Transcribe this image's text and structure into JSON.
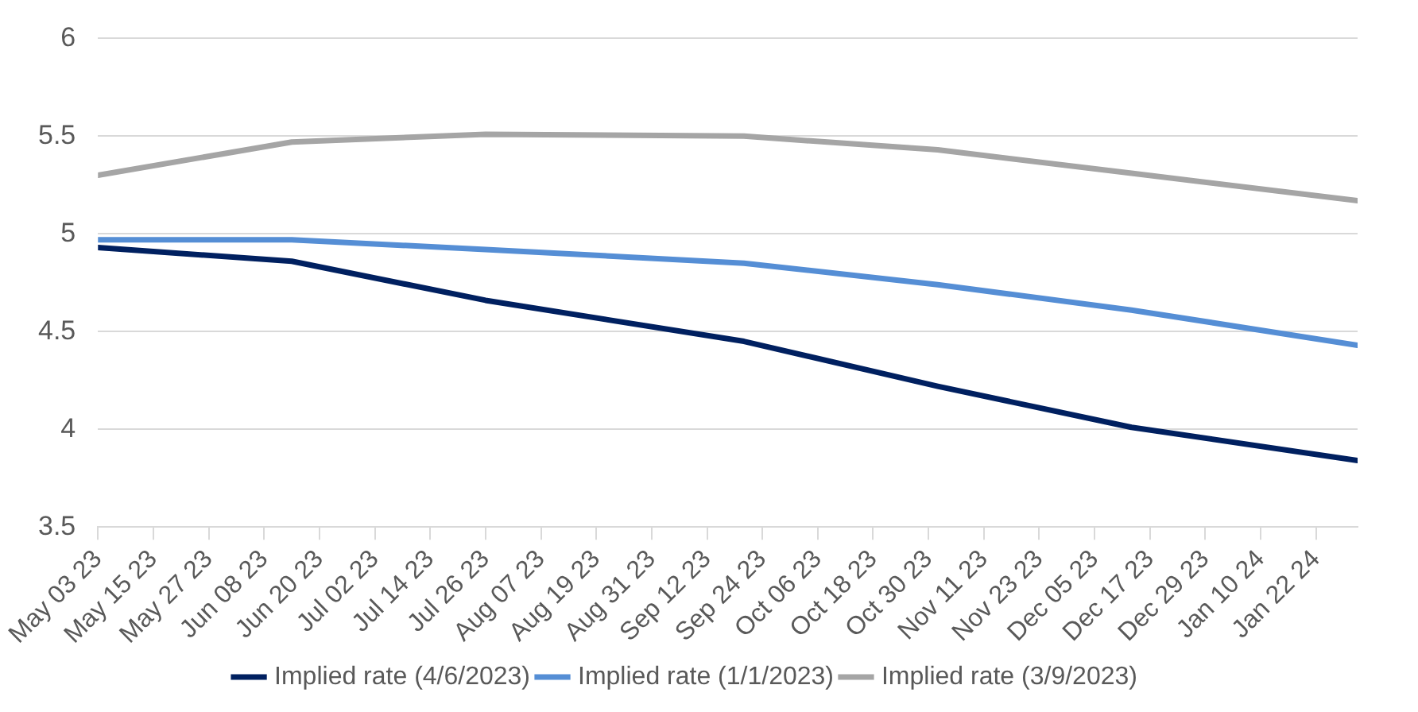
{
  "chart_data": {
    "type": "line",
    "x": [
      "2023-05-03",
      "2023-06-14",
      "2023-07-26",
      "2023-09-20",
      "2023-11-01",
      "2023-12-13",
      "2024-01-31"
    ],
    "series": [
      {
        "name": "Implied rate (4/6/2023)",
        "color": "#002060",
        "values": [
          4.93,
          4.86,
          4.66,
          4.45,
          4.22,
          4.01,
          3.84
        ]
      },
      {
        "name": "Implied rate (1/1/2023)",
        "color": "#558ed5",
        "values": [
          4.97,
          4.97,
          4.92,
          4.85,
          4.74,
          4.61,
          4.43
        ]
      },
      {
        "name": "Implied rate (3/9/2023)",
        "color": "#a5a5a5",
        "values": [
          5.3,
          5.47,
          5.51,
          5.5,
          5.43,
          5.31,
          5.17
        ]
      }
    ],
    "xlim": [
      "2023-05-03",
      "2024-01-31"
    ],
    "xticks": [
      {
        "value": "2023-05-03",
        "label": "May 03 23"
      },
      {
        "value": "2023-05-15",
        "label": "May 15 23"
      },
      {
        "value": "2023-05-27",
        "label": "May 27 23"
      },
      {
        "value": "2023-06-08",
        "label": "Jun 08 23"
      },
      {
        "value": "2023-06-20",
        "label": "Jun 20 23"
      },
      {
        "value": "2023-07-02",
        "label": "Jul 02 23"
      },
      {
        "value": "2023-07-14",
        "label": "Jul 14 23"
      },
      {
        "value": "2023-07-26",
        "label": "Jul 26 23"
      },
      {
        "value": "2023-08-07",
        "label": "Aug 07 23"
      },
      {
        "value": "2023-08-19",
        "label": "Aug 19 23"
      },
      {
        "value": "2023-08-31",
        "label": "Aug 31 23"
      },
      {
        "value": "2023-09-12",
        "label": "Sep 12 23"
      },
      {
        "value": "2023-09-24",
        "label": "Sep 24 23"
      },
      {
        "value": "2023-10-06",
        "label": "Oct 06 23"
      },
      {
        "value": "2023-10-18",
        "label": "Oct 18 23"
      },
      {
        "value": "2023-10-30",
        "label": "Oct 30 23"
      },
      {
        "value": "2023-11-11",
        "label": "Nov 11 23"
      },
      {
        "value": "2023-11-23",
        "label": "Nov 23 23"
      },
      {
        "value": "2023-12-05",
        "label": "Dec 05 23"
      },
      {
        "value": "2023-12-17",
        "label": "Dec 17 23"
      },
      {
        "value": "2023-12-29",
        "label": "Dec 29 23"
      },
      {
        "value": "2024-01-10",
        "label": "Jan 10 24"
      },
      {
        "value": "2024-01-22",
        "label": "Jan 22 24"
      }
    ],
    "ylim": [
      3.5,
      6
    ],
    "yticks": [
      3.5,
      4,
      4.5,
      5,
      5.5,
      6
    ],
    "grid": "y",
    "legend": "bottom",
    "marker": "none",
    "line_style": "solid"
  }
}
